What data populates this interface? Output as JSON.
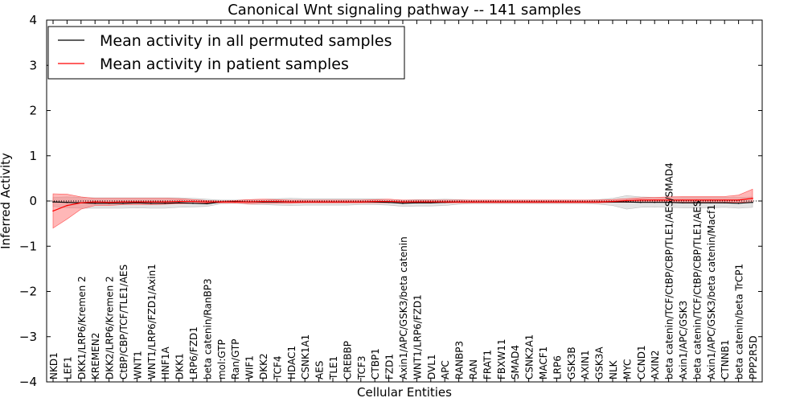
{
  "chart_data": {
    "type": "line",
    "title": "Canonical Wnt signaling pathway -- 141 samples",
    "xlabel": "Cellular Entities",
    "ylabel": "Inferred Activity",
    "ylim": [
      -4,
      4
    ],
    "yticks": [
      "4",
      "3",
      "2",
      "1",
      "0",
      "−1",
      "−2",
      "−3",
      "−4"
    ],
    "ytick_values": [
      4,
      3,
      2,
      1,
      0,
      -1,
      -2,
      -3,
      -4
    ],
    "grid": false,
    "legend_position": "top-left",
    "categories": [
      "NKD1",
      "LEF1",
      "DKK1/LRP6/Kremen 2",
      "KREMEN2",
      "DKK2/LRP6/Kremen 2",
      "CtBP/CBP/TCF/TLE1/AES",
      "WNT1",
      "WNT1/LRP6/FZD1/Axin1",
      "HNF1A",
      "DKK1",
      "LRP6/FZD1",
      "beta catenin/RanBP3",
      "mol:GTP",
      "Ran/GTP",
      "WIF1",
      "DKK2",
      "TCF4",
      "HDAC1",
      "CSNK1A1",
      "AES",
      "TLE1",
      "CREBBP",
      "TCF3",
      "CTBP1",
      "FZD1",
      "Axin1/APC/GSK3/beta catenin",
      "WNT1/LRP6/FZD1",
      "DVL1",
      "APC",
      "RANBP3",
      "RAN",
      "FRAT1",
      "FBXW11",
      "SMAD4",
      "CSNK2A1",
      "MACF1",
      "LRP6",
      "GSK3B",
      "AXIN1",
      "GSK3A",
      "NLK",
      "MYC",
      "CCND1",
      "AXIN2",
      "beta catenin/TCF/CtBP/CBP/TLE1/AES/SMAD4",
      "Axin1/APC/GSK3",
      "beta catenin/TCF/CtBP/CBP/TLE1/AES",
      "Axin1/APC/GSK3/beta catenin/Macf1",
      "CTNNB1",
      "beta catenin/beta TrCP1",
      "PPP2R5D"
    ],
    "series": [
      {
        "name": "Mean activity in all permuted samples",
        "color": "#000000",
        "values": [
          -0.02,
          -0.03,
          -0.04,
          -0.05,
          -0.05,
          -0.05,
          -0.04,
          -0.05,
          -0.05,
          -0.04,
          -0.05,
          -0.06,
          -0.02,
          -0.01,
          -0.02,
          -0.02,
          -0.02,
          -0.02,
          -0.02,
          -0.02,
          -0.02,
          -0.02,
          -0.02,
          -0.02,
          -0.03,
          -0.05,
          -0.04,
          -0.04,
          -0.03,
          -0.02,
          -0.02,
          -0.02,
          -0.02,
          -0.02,
          -0.02,
          -0.02,
          -0.02,
          -0.02,
          -0.02,
          -0.02,
          -0.02,
          -0.02,
          -0.03,
          -0.03,
          -0.03,
          -0.04,
          -0.04,
          -0.04,
          -0.04,
          -0.05,
          -0.03
        ],
        "lower": [
          -0.12,
          -0.15,
          -0.16,
          -0.16,
          -0.16,
          -0.16,
          -0.15,
          -0.16,
          -0.16,
          -0.14,
          -0.13,
          -0.12,
          -0.06,
          -0.05,
          -0.07,
          -0.08,
          -0.09,
          -0.1,
          -0.09,
          -0.09,
          -0.09,
          -0.09,
          -0.08,
          -0.08,
          -0.09,
          -0.12,
          -0.11,
          -0.11,
          -0.1,
          -0.07,
          -0.06,
          -0.06,
          -0.06,
          -0.06,
          -0.06,
          -0.06,
          -0.06,
          -0.06,
          -0.06,
          -0.07,
          -0.1,
          -0.18,
          -0.14,
          -0.13,
          -0.14,
          -0.15,
          -0.15,
          -0.15,
          -0.14,
          -0.16,
          -0.14
        ],
        "upper": [
          0.08,
          0.09,
          0.08,
          0.07,
          0.07,
          0.07,
          0.07,
          0.07,
          0.07,
          0.07,
          0.06,
          0.04,
          0.02,
          0.02,
          0.03,
          0.04,
          0.05,
          0.06,
          0.05,
          0.05,
          0.05,
          0.05,
          0.05,
          0.05,
          0.04,
          0.02,
          0.03,
          0.03,
          0.04,
          0.03,
          0.02,
          0.02,
          0.02,
          0.02,
          0.02,
          0.02,
          0.02,
          0.02,
          0.02,
          0.03,
          0.06,
          0.12,
          0.09,
          0.08,
          0.08,
          0.08,
          0.08,
          0.08,
          0.08,
          0.08,
          0.09
        ]
      },
      {
        "name": "Mean activity in patient samples",
        "color": "#ff0000",
        "values": [
          -0.22,
          -0.1,
          -0.04,
          -0.02,
          -0.03,
          -0.02,
          -0.02,
          -0.02,
          -0.02,
          -0.01,
          -0.01,
          -0.02,
          -0.02,
          -0.02,
          -0.02,
          -0.01,
          -0.01,
          -0.02,
          -0.02,
          -0.02,
          -0.02,
          -0.02,
          -0.02,
          -0.01,
          -0.01,
          -0.02,
          -0.02,
          -0.02,
          -0.02,
          -0.02,
          -0.02,
          -0.02,
          -0.02,
          -0.02,
          -0.02,
          -0.02,
          -0.02,
          -0.02,
          -0.02,
          -0.02,
          -0.01,
          0.01,
          0.02,
          0.02,
          0.02,
          0.02,
          0.02,
          0.02,
          0.02,
          0.02,
          0.06
        ],
        "lower": [
          -0.6,
          -0.4,
          -0.18,
          -0.1,
          -0.1,
          -0.08,
          -0.08,
          -0.08,
          -0.07,
          -0.06,
          -0.05,
          -0.04,
          -0.04,
          -0.04,
          -0.06,
          -0.05,
          -0.05,
          -0.05,
          -0.04,
          -0.04,
          -0.04,
          -0.04,
          -0.04,
          -0.04,
          -0.04,
          -0.04,
          -0.04,
          -0.04,
          -0.04,
          -0.04,
          -0.04,
          -0.04,
          -0.04,
          -0.04,
          -0.04,
          -0.04,
          -0.04,
          -0.04,
          -0.04,
          -0.04,
          -0.03,
          -0.03,
          -0.03,
          -0.03,
          -0.03,
          -0.03,
          -0.03,
          -0.03,
          -0.03,
          -0.03,
          -0.03
        ],
        "upper": [
          0.16,
          0.15,
          0.09,
          0.06,
          0.06,
          0.06,
          0.06,
          0.06,
          0.06,
          0.05,
          0.03,
          0.01,
          0.0,
          0.01,
          0.03,
          0.04,
          0.03,
          0.02,
          0.02,
          0.02,
          0.02,
          0.02,
          0.02,
          0.03,
          0.04,
          0.02,
          0.02,
          0.02,
          0.02,
          0.02,
          0.02,
          0.02,
          0.02,
          0.02,
          0.02,
          0.02,
          0.02,
          0.02,
          0.02,
          0.02,
          0.03,
          0.05,
          0.07,
          0.08,
          0.09,
          0.1,
          0.1,
          0.1,
          0.1,
          0.13,
          0.26
        ]
      }
    ]
  }
}
